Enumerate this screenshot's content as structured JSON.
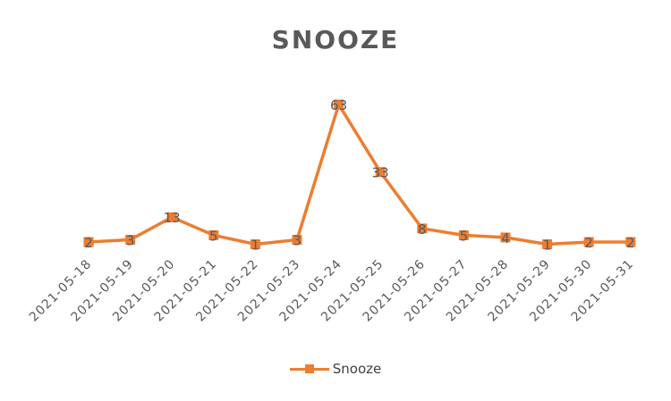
{
  "chart_data": {
    "type": "line",
    "title": "SNOOZE",
    "categories": [
      "2021-05-18",
      "2021-05-19",
      "2021-05-20",
      "2021-05-21",
      "2021-05-22",
      "2021-05-23",
      "2021-05-24",
      "2021-05-25",
      "2021-05-26",
      "2021-05-27",
      "2021-05-28",
      "2021-05-29",
      "2021-05-30",
      "2021-05-31"
    ],
    "series": [
      {
        "name": "Snooze",
        "values": [
          2,
          3,
          13,
          5,
          1,
          3,
          63,
          33,
          8,
          5,
          4,
          1,
          2,
          2
        ],
        "color": "#ED7D31"
      }
    ],
    "ylim": [
      0,
      70
    ],
    "grid": false,
    "legend_position": "bottom",
    "data_labels": true
  }
}
